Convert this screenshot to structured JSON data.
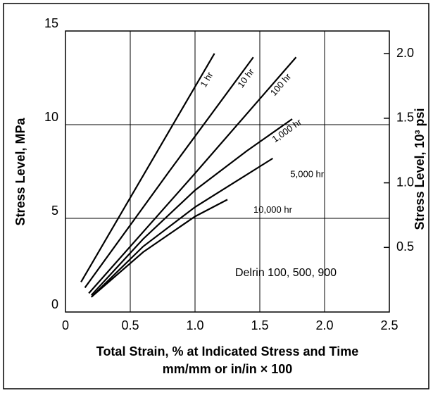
{
  "chart_data": {
    "type": "line",
    "y_label": "Stress Level, MPa",
    "y2_label": "Stress Level, 10³ psi",
    "x_label": [
      "Total Strain, % at Indicated Stress and Time",
      "mm/mm or in/in × 100"
    ],
    "annotation": "Delrin 100, 500, 900",
    "xlim": [
      0,
      2.5
    ],
    "xticks": [
      0,
      0.5,
      {
        "value": 1,
        "label": "1.0"
      },
      1.5,
      {
        "value": 2,
        "label": "2.0"
      },
      2.5
    ],
    "ylim": [
      0,
      15
    ],
    "yticks": [
      0,
      5,
      10,
      15
    ],
    "y2lim": [
      0,
      2.1756
    ],
    "y2ticks": [
      0.5,
      {
        "value": 1,
        "label": "1.0"
      },
      1.5,
      {
        "value": 2,
        "label": "2.0"
      }
    ],
    "grid": true,
    "series": [
      {
        "name": "1 hr",
        "color": "#000000",
        "x": [
          0.12,
          1.15
        ],
        "values": [
          1.6,
          13.8
        ]
      },
      {
        "name": "10 hr",
        "color": "#000000",
        "x": [
          0.15,
          0.8,
          1.45
        ],
        "values": [
          1.3,
          7.5,
          13.6
        ]
      },
      {
        "name": "100 hr",
        "color": "#000000",
        "x": [
          0.18,
          1.0,
          1.78
        ],
        "values": [
          1.0,
          7.4,
          13.6
        ]
      },
      {
        "name": "1,000 hr",
        "color": "#000000",
        "x": [
          0.2,
          0.6,
          1.0,
          1.4,
          1.75
        ],
        "values": [
          0.9,
          3.9,
          6.5,
          8.6,
          10.3
        ]
      },
      {
        "name": "5,000 hr",
        "color": "#000000",
        "x": [
          0.2,
          0.6,
          1.0,
          1.3,
          1.6
        ],
        "values": [
          0.8,
          3.5,
          5.6,
          6.9,
          8.2
        ]
      },
      {
        "name": "10,000 hr",
        "color": "#000000",
        "x": [
          0.2,
          0.6,
          1.0,
          1.25
        ],
        "values": [
          0.8,
          3.2,
          5.1,
          6.0
        ]
      }
    ]
  }
}
